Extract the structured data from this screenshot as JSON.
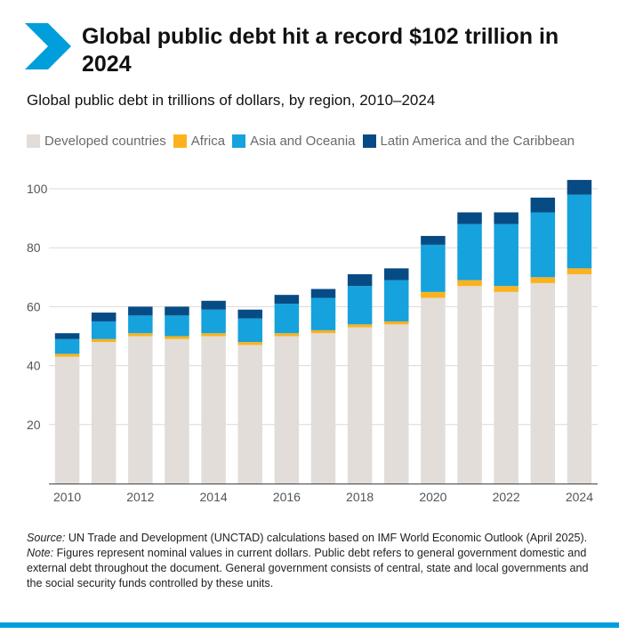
{
  "header": {
    "title": "Global public debt hit a record $102 trillion in 2024"
  },
  "chart_data": {
    "type": "bar",
    "stacked": true,
    "subtitle": "Global public debt in trillions of dollars, by region, 2010–2024",
    "categories": [
      2010,
      2011,
      2012,
      2013,
      2014,
      2015,
      2016,
      2017,
      2018,
      2019,
      2020,
      2021,
      2022,
      2023,
      2024
    ],
    "x_tick_labels": [
      "2010",
      "2012",
      "2014",
      "2016",
      "2018",
      "2020",
      "2022",
      "2024"
    ],
    "y_ticks": [
      20,
      40,
      60,
      80,
      100
    ],
    "ylim": [
      0,
      103
    ],
    "grid": true,
    "legend_position": "top",
    "series": [
      {
        "name": "Developed countries",
        "color": "#e2ddd9",
        "values": [
          43,
          48,
          50,
          49,
          50,
          47,
          50,
          51,
          53,
          54,
          63,
          67,
          65,
          68,
          71
        ]
      },
      {
        "name": "Africa",
        "color": "#fbb21d",
        "values": [
          1,
          1,
          1,
          1,
          1,
          1,
          1,
          1,
          1,
          1,
          2,
          2,
          2,
          2,
          2
        ]
      },
      {
        "name": "Asia and Oceania",
        "color": "#15a2dd",
        "values": [
          5,
          6,
          6,
          7,
          8,
          8,
          10,
          11,
          13,
          14,
          16,
          19,
          21,
          22,
          25
        ]
      },
      {
        "name": "Latin America and the Caribbean",
        "color": "#074b85",
        "values": [
          2,
          3,
          3,
          3,
          3,
          3,
          3,
          3,
          4,
          4,
          3,
          4,
          4,
          5,
          5
        ]
      }
    ]
  },
  "notes": {
    "source_label": "Source:",
    "source_text": " UN Trade and Development (UNCTAD) calculations based on IMF World Economic Outlook (April 2025).",
    "note_label": "Note:",
    "note_text": " Figures represent nominal values in current dollars. Public debt refers to general government domestic and external debt throughout the document. General government consists of central, state and local governments and the social security funds controlled by these units."
  },
  "colors": {
    "accent": "#009edb",
    "grid": "#d9d9d9"
  }
}
